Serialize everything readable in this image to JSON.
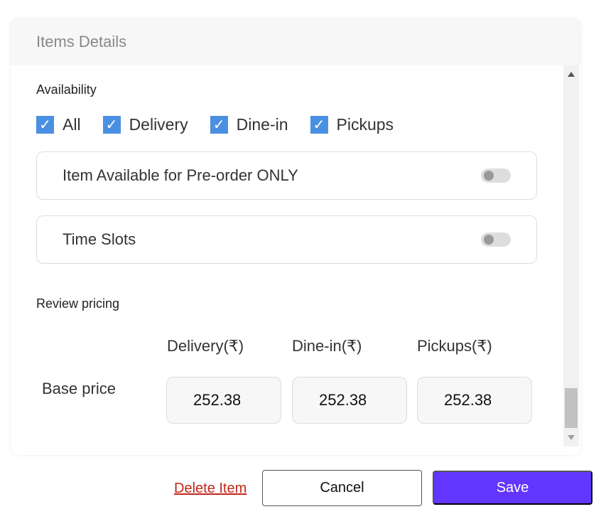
{
  "header": {
    "title": "Items Details"
  },
  "availability": {
    "label": "Availability",
    "options": [
      {
        "label": "All",
        "checked": true
      },
      {
        "label": "Delivery",
        "checked": true
      },
      {
        "label": "Dine-in",
        "checked": true
      },
      {
        "label": "Pickups",
        "checked": true
      }
    ]
  },
  "toggles": [
    {
      "label": "Item Available for Pre-order ONLY",
      "on": false
    },
    {
      "label": "Time Slots",
      "on": false
    }
  ],
  "pricing": {
    "label": "Review pricing",
    "columns": [
      "Delivery(₹)",
      "Dine-in(₹)",
      "Pickups(₹)"
    ],
    "row_label": "Base price",
    "values": [
      "252.38",
      "252.38",
      "252.38"
    ]
  },
  "footer": {
    "delete": "Delete Item",
    "cancel": "Cancel",
    "save": "Save"
  },
  "colors": {
    "accent": "#6236ff",
    "checkbox": "#4a90e2",
    "danger": "#c0271b"
  }
}
